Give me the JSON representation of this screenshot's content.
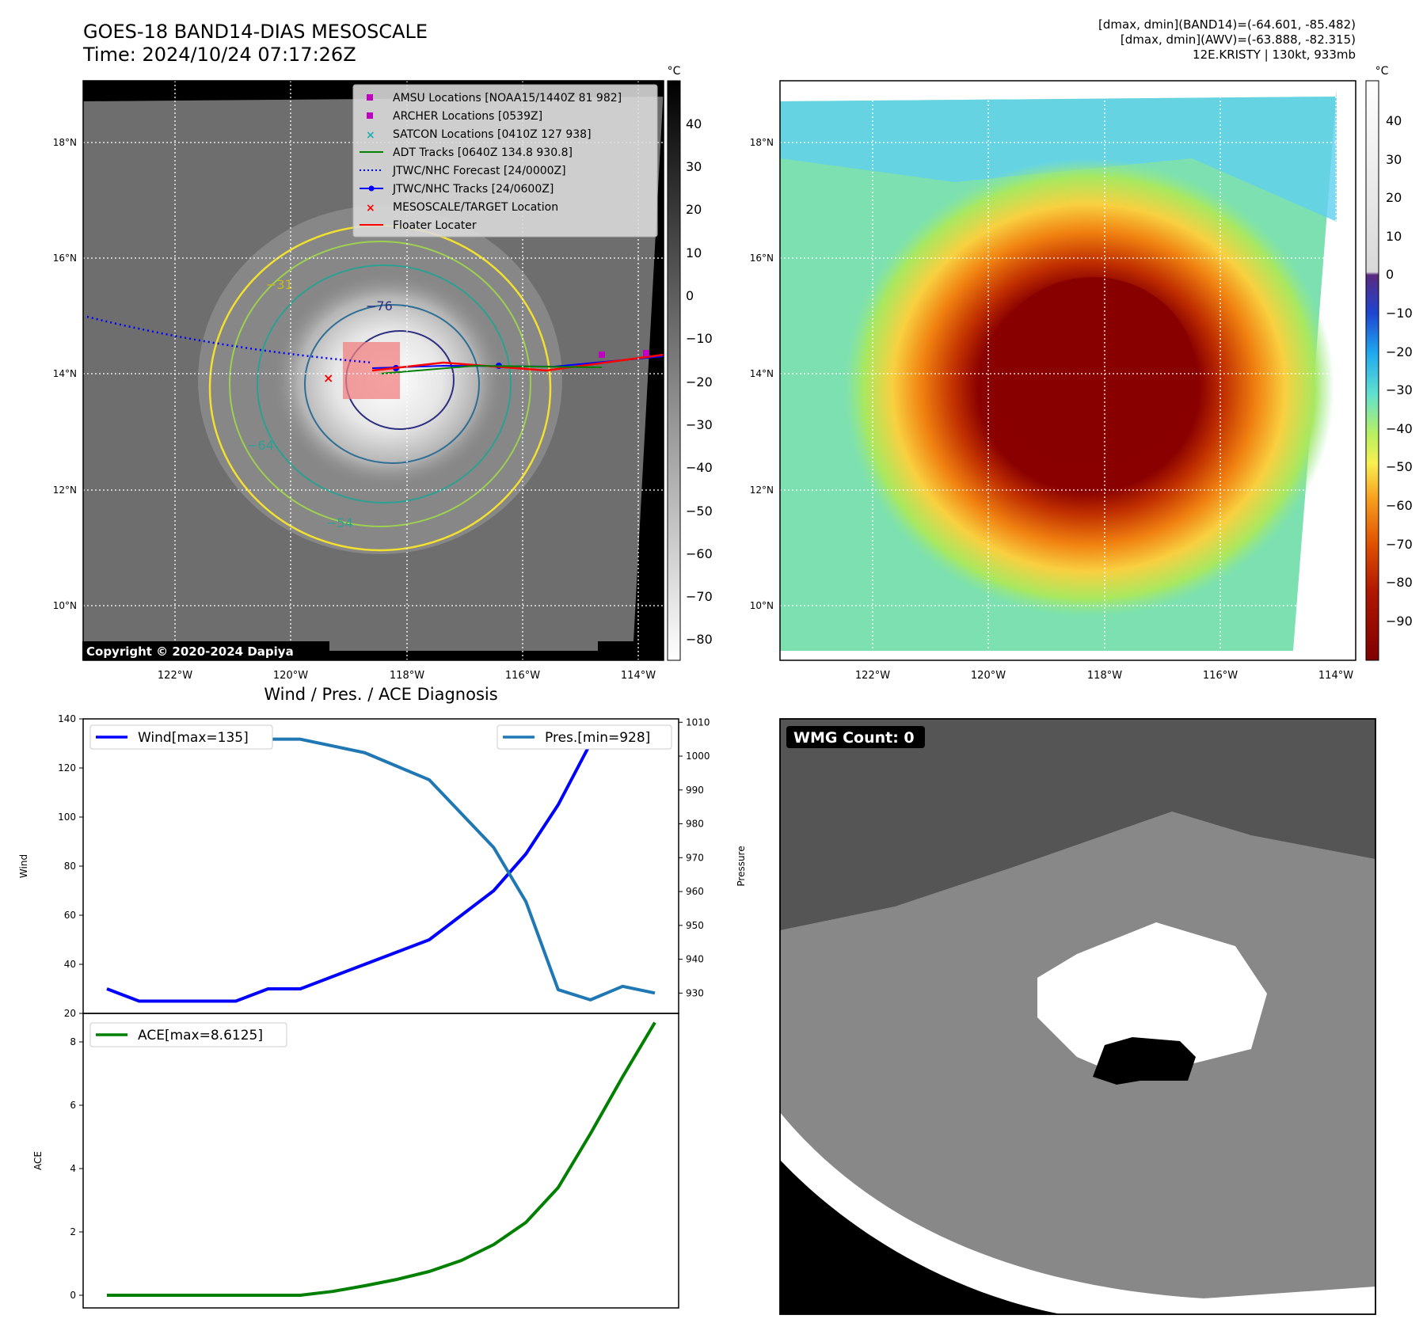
{
  "header": {
    "title_line1": "GOES-18 BAND14-DIAS MESOSCALE",
    "title_line2": "Time: 2024/10/24 07:17:26Z",
    "info_line1": "[dmax, dmin](BAND14)=(-64.601, -85.482)",
    "info_line2": "[dmax, dmin](AWV)=(-63.888, -82.315)",
    "info_line3": "12E.KRISTY | 130kt, 933mb"
  },
  "maps": {
    "lat_labels": [
      "18°N",
      "16°N",
      "14°N",
      "12°N",
      "10°N"
    ],
    "lon_labels": [
      "122°W",
      "120°W",
      "118°W",
      "116°W",
      "114°W"
    ],
    "copyright": "Copyright © 2020-2024 Dapiya",
    "contour_labels": [
      "−76",
      "−64",
      "−54",
      "−31"
    ],
    "legend": [
      {
        "label": "AMSU Locations [NOAA15/1440Z 81 982]",
        "marker": "square",
        "color": "#c000c0"
      },
      {
        "label": "ARCHER Locations [0539Z]",
        "marker": "square",
        "color": "#c000c0"
      },
      {
        "label": "SATCON Locations [0410Z 127 938]",
        "marker": "x",
        "color": "#20b0b0"
      },
      {
        "label": "ADT Tracks [0640Z 134.8 930.8]",
        "marker": "line",
        "color": "#008000"
      },
      {
        "label": "JTWC/NHC Forecast [24/0000Z]",
        "marker": "dotted",
        "color": "#0000ff"
      },
      {
        "label": "JTWC/NHC Tracks [24/0600Z]",
        "marker": "line-dot",
        "color": "#0000ff"
      },
      {
        "label": "MESOSCALE/TARGET Location",
        "marker": "x",
        "color": "#ff0000"
      },
      {
        "label": "Floater Locater",
        "marker": "line",
        "color": "#ff0000"
      }
    ]
  },
  "colorbars": {
    "unit": "°C",
    "gray_ticks": [
      "40",
      "30",
      "20",
      "10",
      "0",
      "−10",
      "−20",
      "−30",
      "−40",
      "−50",
      "−60",
      "−70",
      "−80"
    ],
    "color_ticks": [
      "40",
      "30",
      "20",
      "10",
      "0",
      "−10",
      "−20",
      "−30",
      "−40",
      "−50",
      "−60",
      "−70",
      "−80",
      "−90"
    ]
  },
  "wmg": {
    "label": "WMG Count: 0"
  },
  "chart_data": [
    {
      "type": "line",
      "title": "Wind / Pres. / ACE Diagnosis",
      "ylabel": "Wind",
      "ylabel_right": "Pressure",
      "ylim": [
        20,
        140
      ],
      "ylim_right": [
        924,
        1011
      ],
      "yticks": [
        "140",
        "120",
        "100",
        "80",
        "60",
        "40",
        "20"
      ],
      "yticks_right": [
        "1010",
        "1000",
        "990",
        "980",
        "970",
        "960",
        "950",
        "940",
        "930"
      ],
      "series": [
        {
          "name": "Wind[max=135]",
          "color": "#0000ff",
          "axis": "left",
          "values": [
            30,
            25,
            25,
            25,
            25,
            30,
            30,
            35,
            40,
            45,
            50,
            60,
            70,
            85,
            105,
            130,
            135,
            130
          ]
        },
        {
          "name": "Pres.[min=928]",
          "color": "#1f77b4",
          "axis": "right",
          "values": [
            1005,
            1005,
            1005,
            1006,
            1006,
            1005,
            1005,
            1003,
            1001,
            997,
            993,
            983,
            973,
            957,
            931,
            928,
            932,
            930
          ]
        }
      ]
    },
    {
      "type": "line",
      "ylabel": "ACE",
      "ylim": [
        -0.4,
        8.9
      ],
      "yticks": [
        "8",
        "6",
        "4",
        "2",
        "0"
      ],
      "series": [
        {
          "name": "ACE[max=8.6125]",
          "color": "#008000",
          "values": [
            0,
            0,
            0,
            0,
            0,
            0,
            0,
            0.12,
            0.3,
            0.5,
            0.75,
            1.1,
            1.6,
            2.3,
            3.4,
            5.1,
            6.9,
            8.6125
          ]
        }
      ]
    }
  ]
}
